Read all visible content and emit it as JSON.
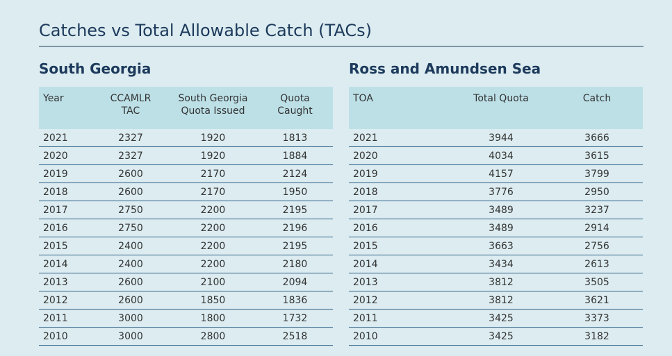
{
  "title": "Catches vs Total Allowable Catch (TACs)",
  "south_georgia": {
    "heading": "South Georgia",
    "columns": [
      "Year",
      "CCAMLR TAC",
      "South Georgia Quota Issued",
      "Quota Caught"
    ],
    "rows": [
      [
        "2021",
        "2327",
        "1920",
        "1813"
      ],
      [
        "2020",
        "2327",
        "1920",
        "1884"
      ],
      [
        "2019",
        "2600",
        "2170",
        "2124"
      ],
      [
        "2018",
        "2600",
        "2170",
        "1950"
      ],
      [
        "2017",
        "2750",
        "2200",
        "2195"
      ],
      [
        "2016",
        "2750",
        "2200",
        "2196"
      ],
      [
        "2015",
        "2400",
        "2200",
        "2195"
      ],
      [
        "2014",
        "2400",
        "2200",
        "2180"
      ],
      [
        "2013",
        "2600",
        "2100",
        "2094"
      ],
      [
        "2012",
        "2600",
        "1850",
        "1836"
      ],
      [
        "2011",
        "3000",
        "1800",
        "1732"
      ],
      [
        "2010",
        "3000",
        "2800",
        "2518"
      ]
    ]
  },
  "ross_amundsen": {
    "heading": "Ross and Amundsen Sea",
    "columns": [
      "TOA",
      "Total Quota",
      "Catch"
    ],
    "rows": [
      [
        "2021",
        "3944",
        "3666"
      ],
      [
        "2020",
        "4034",
        "3615"
      ],
      [
        "2019",
        "4157",
        "3799"
      ],
      [
        "2018",
        "3776",
        "2950"
      ],
      [
        "2017",
        "3489",
        "3237"
      ],
      [
        "2016",
        "3489",
        "2914"
      ],
      [
        "2015",
        "3663",
        "2756"
      ],
      [
        "2014",
        "3434",
        "2613"
      ],
      [
        "2013",
        "3812",
        "3505"
      ],
      [
        "2012",
        "3812",
        "3621"
      ],
      [
        "2011",
        "3425",
        "3373"
      ],
      [
        "2010",
        "3425",
        "3182"
      ]
    ]
  }
}
